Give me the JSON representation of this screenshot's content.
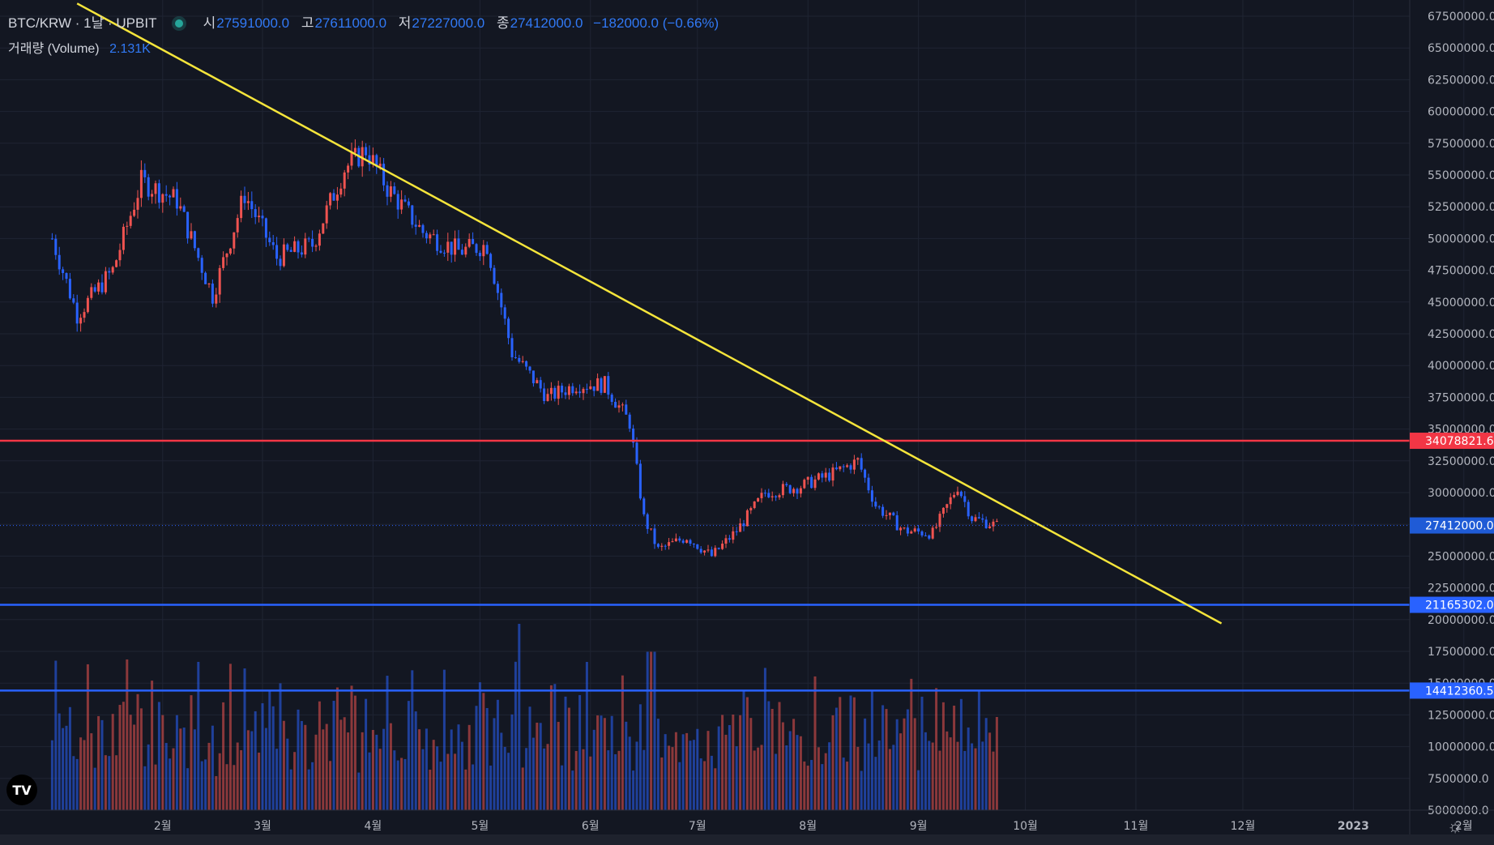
{
  "header": {
    "symbol": "BTC/KRW · 1날 · UPBIT",
    "open_label": "시",
    "open": "27591000.0",
    "high_label": "고",
    "high": "27611000.0",
    "low_label": "저",
    "low": "27227000.0",
    "close_label": "종",
    "close": "27412000.0",
    "change": "−182000.0 (−0.66%)"
  },
  "volume_legend": {
    "label": "거래량 (Volume)",
    "value": "2.131K"
  },
  "logo": "TV",
  "colors": {
    "background": "#131722",
    "up": "#ef5350",
    "down": "#2962ff",
    "trendline": "#f5e53b",
    "resistance": "#f23645",
    "support": "#2962ff"
  },
  "chart_data": {
    "type": "candlestick",
    "title": "BTC/KRW · 1날 · UPBIT",
    "x_ticks": [
      "2월",
      "3월",
      "4월",
      "5월",
      "6월",
      "7월",
      "8월",
      "9월",
      "10월",
      "11월",
      "12월",
      "2023",
      "2월"
    ],
    "y_ticks": [
      "67500000.0",
      "65000000.0",
      "62500000.0",
      "60000000.0",
      "57500000.0",
      "55000000.0",
      "52500000.0",
      "50000000.0",
      "47500000.0",
      "45000000.0",
      "42500000.0",
      "40000000.0",
      "37500000.0",
      "35000000.0",
      "32500000.0",
      "30000000.0",
      "27500000.0",
      "25000000.0",
      "22500000.0",
      "20000000.0",
      "17500000.0",
      "15000000.0",
      "12500000.0",
      "10000000.0",
      "7500000.0",
      "5000000.0"
    ],
    "ylim": [
      5000000,
      67500000
    ],
    "price_labels": [
      {
        "value": "34078821.6",
        "kind": "resistance"
      },
      {
        "value": "27412000.0",
        "kind": "last"
      },
      {
        "value": "21165302.0",
        "kind": "support"
      },
      {
        "value": "14412360.5",
        "kind": "support"
      }
    ],
    "horizontal_lines": [
      {
        "price": 34078821.6,
        "color": "#f23645"
      },
      {
        "price": 21165302.0,
        "color": "#2962ff"
      },
      {
        "price": 14412360.5,
        "color": "#2962ff"
      }
    ],
    "trendline": {
      "start": {
        "date": "2022-01-08",
        "price": 68500000
      },
      "end": {
        "date": "2022-11-25",
        "price": 19700000
      }
    },
    "series_waypoints": [
      {
        "date": "2022-01-01",
        "price": 50000000
      },
      {
        "date": "2022-01-08",
        "price": 44000000
      },
      {
        "date": "2022-01-18",
        "price": 47500000
      },
      {
        "date": "2022-01-26",
        "price": 54500000
      },
      {
        "date": "2022-02-05",
        "price": 53000000
      },
      {
        "date": "2022-02-15",
        "price": 45500000
      },
      {
        "date": "2022-02-24",
        "price": 53500000
      },
      {
        "date": "2022-03-05",
        "price": 48500000
      },
      {
        "date": "2022-03-15",
        "price": 49500000
      },
      {
        "date": "2022-03-24",
        "price": 55500000
      },
      {
        "date": "2022-03-30",
        "price": 57000000
      },
      {
        "date": "2022-04-05",
        "price": 54000000
      },
      {
        "date": "2022-04-15",
        "price": 50500000
      },
      {
        "date": "2022-04-25",
        "price": 49000000
      },
      {
        "date": "2022-05-03",
        "price": 49500000
      },
      {
        "date": "2022-05-10",
        "price": 41000000
      },
      {
        "date": "2022-05-20",
        "price": 37500000
      },
      {
        "date": "2022-05-28",
        "price": 38500000
      },
      {
        "date": "2022-06-05",
        "price": 38500000
      },
      {
        "date": "2022-06-12",
        "price": 35500000
      },
      {
        "date": "2022-06-16",
        "price": 28000000
      },
      {
        "date": "2022-06-20",
        "price": 25500000
      },
      {
        "date": "2022-06-28",
        "price": 26500000
      },
      {
        "date": "2022-07-05",
        "price": 25000000
      },
      {
        "date": "2022-07-12",
        "price": 27000000
      },
      {
        "date": "2022-07-20",
        "price": 30000000
      },
      {
        "date": "2022-07-30",
        "price": 30500000
      },
      {
        "date": "2022-08-08",
        "price": 31500000
      },
      {
        "date": "2022-08-15",
        "price": 32500000
      },
      {
        "date": "2022-08-20",
        "price": 29000000
      },
      {
        "date": "2022-08-28",
        "price": 27000000
      },
      {
        "date": "2022-09-05",
        "price": 26800000
      },
      {
        "date": "2022-09-12",
        "price": 30500000
      },
      {
        "date": "2022-09-16",
        "price": 28000000
      },
      {
        "date": "2022-09-23",
        "price": 27400000
      }
    ],
    "volume": {
      "max_spike_date": "2022-05-12",
      "note_values_relative": [
        0.55,
        0.6,
        0.4,
        0.35,
        0.5,
        0.45,
        0.3,
        0.35,
        0.5,
        0.4,
        0.6,
        0.38,
        0.32,
        0.42,
        0.55,
        0.48,
        0.36,
        0.4,
        0.3,
        0.45
      ]
    }
  }
}
